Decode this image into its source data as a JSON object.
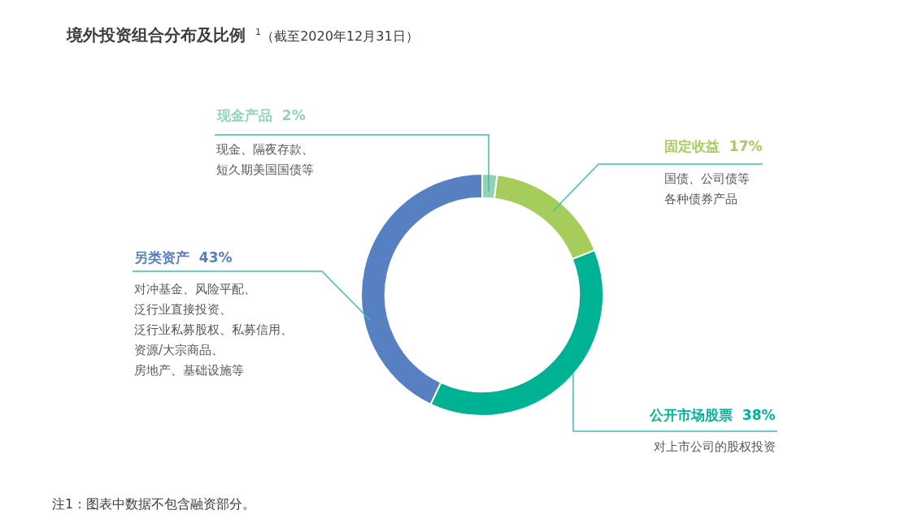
{
  "chart_data": {
    "type": "donut",
    "title": "境外投资组合分布及比例",
    "subtitle": "$^{1}$（截至2020年12月31日）",
    "categories": [
      "现金产品",
      "固定收益",
      "公开市场股票",
      "另类资产"
    ],
    "values": [
      2,
      17,
      38,
      43
    ],
    "value_labels": [
      "2%",
      "17%",
      "38%",
      "43%"
    ],
    "colors": [
      "#93d2b9",
      "#a6cd5c",
      "#00b294",
      "#5680c2"
    ],
    "annotations": [
      "现金、隔夜存款、",
      "短久期美国国债等",
      "国债、公司债等",
      "各种债券产品",
      "对上市公司的股权投资",
      "对冲基金、风险平配、",
      "泛行业直接投资、",
      "泛行业私募股权、私募信用、",
      "资源/大宗商品、",
      "房地产、基础设施等",
      "注1：图表中数据不包含融资部分。"
    ]
  }
}
